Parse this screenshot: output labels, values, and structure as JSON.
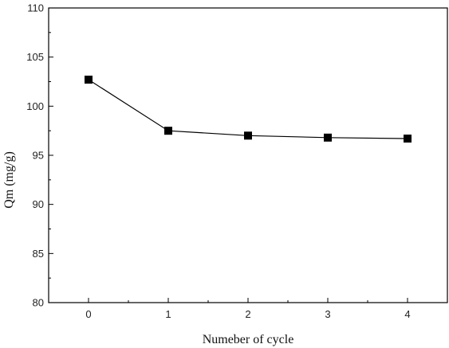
{
  "chart_data": {
    "type": "line",
    "title": "",
    "xlabel": "Numeber of cycle",
    "ylabel": "Qm (mg/g)",
    "x": [
      0,
      1,
      2,
      3,
      4
    ],
    "xticks": [
      "0",
      "1",
      "2",
      "3",
      "4"
    ],
    "xlim": [
      -0.5,
      4.5
    ],
    "ylim": [
      80,
      110
    ],
    "yticks": [
      "80",
      "85",
      "90",
      "95",
      "100",
      "105",
      "110"
    ],
    "series": [
      {
        "values": [
          102.7,
          97.5,
          97.0,
          96.8,
          96.7
        ],
        "marker": "square",
        "color": "#000000"
      }
    ],
    "grid": false,
    "legend": "none"
  }
}
